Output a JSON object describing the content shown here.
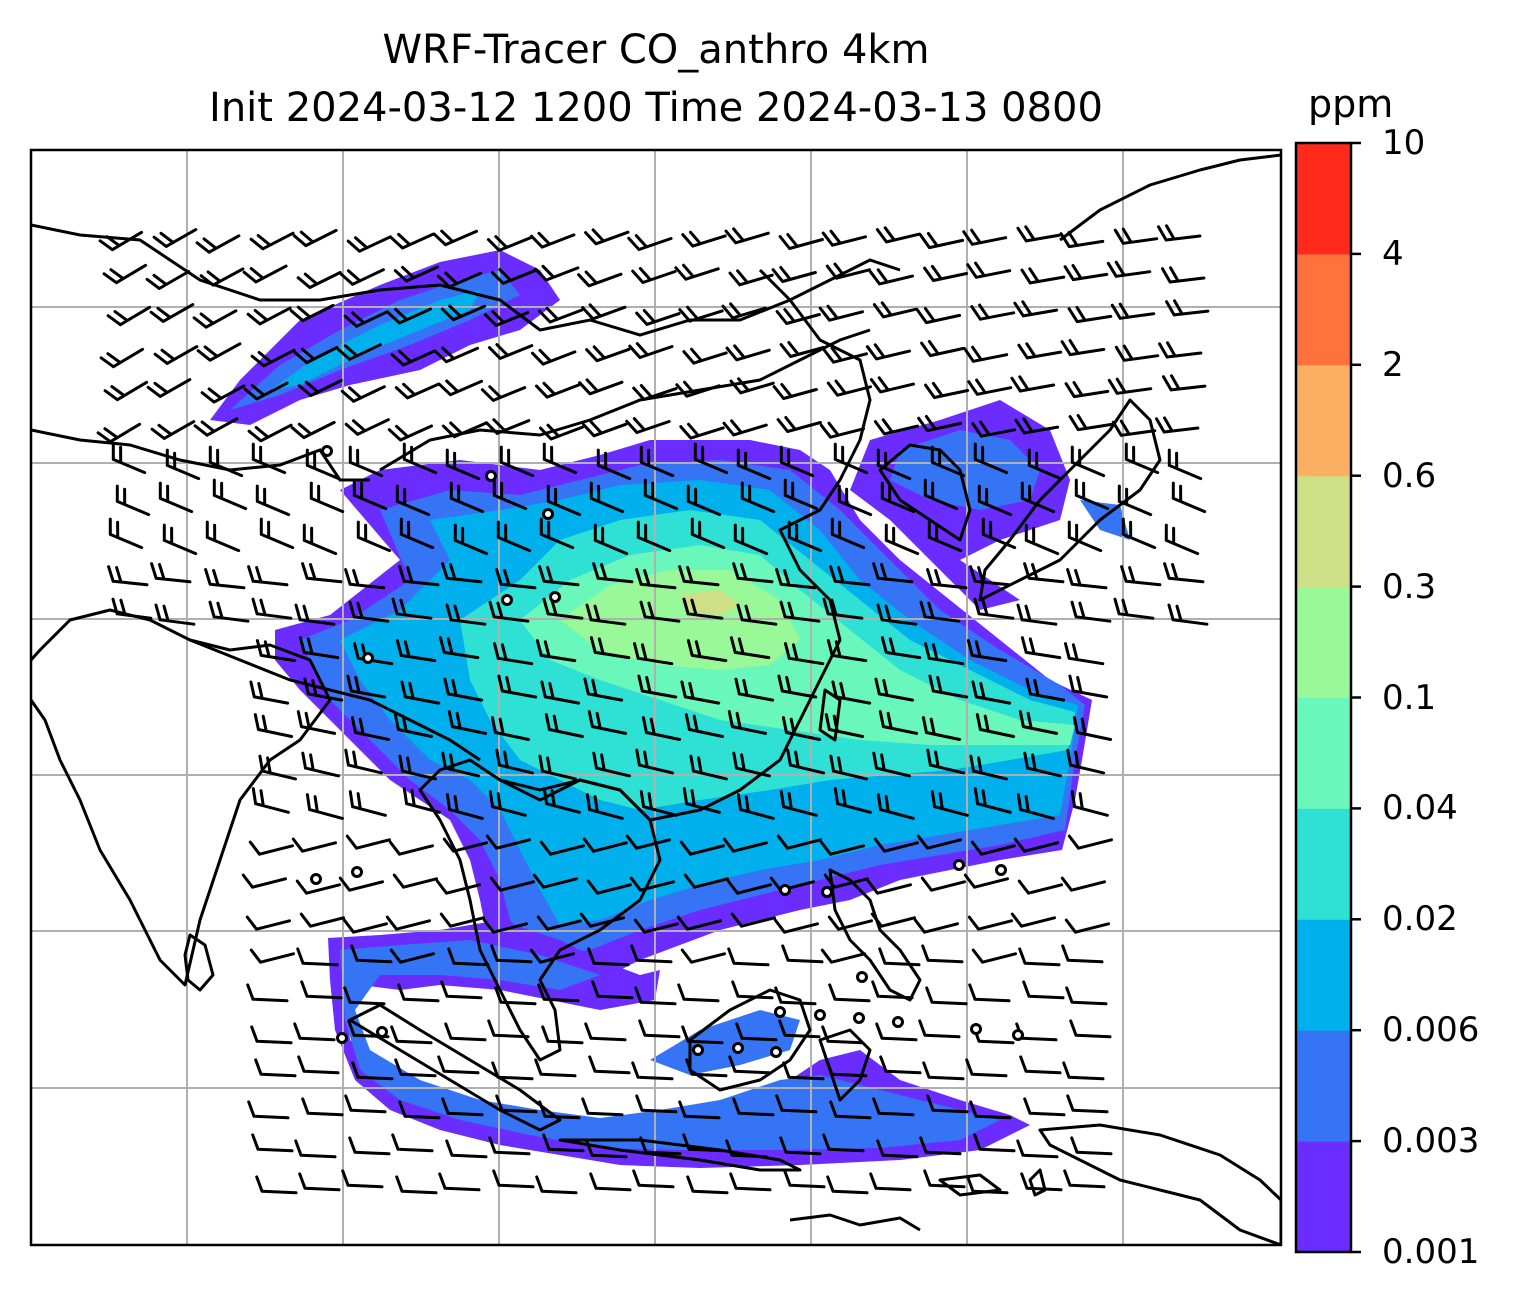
{
  "title": {
    "line1": "WRF-Tracer CO_anthro 4km",
    "line2": "Init 2024-03-12 1200 Time 2024-03-13 0800"
  },
  "colorbar": {
    "units": "ppm",
    "levels": [
      "0.001",
      "0.003",
      "0.006",
      "0.02",
      "0.04",
      "0.1",
      "0.3",
      "0.6",
      "2",
      "4",
      "10"
    ],
    "colors": [
      "#6a2cff",
      "#3575f5",
      "#00b0ec",
      "#2fe0d5",
      "#69f7bb",
      "#99f898",
      "#cfdf85",
      "#fdb062",
      "#ff723d",
      "#ff2a1a"
    ]
  },
  "map": {
    "variable": "CO_anthro",
    "overlays": [
      "coastlines",
      "country-borders",
      "gridlines",
      "wind-barbs"
    ],
    "background": "#ffffff"
  }
}
